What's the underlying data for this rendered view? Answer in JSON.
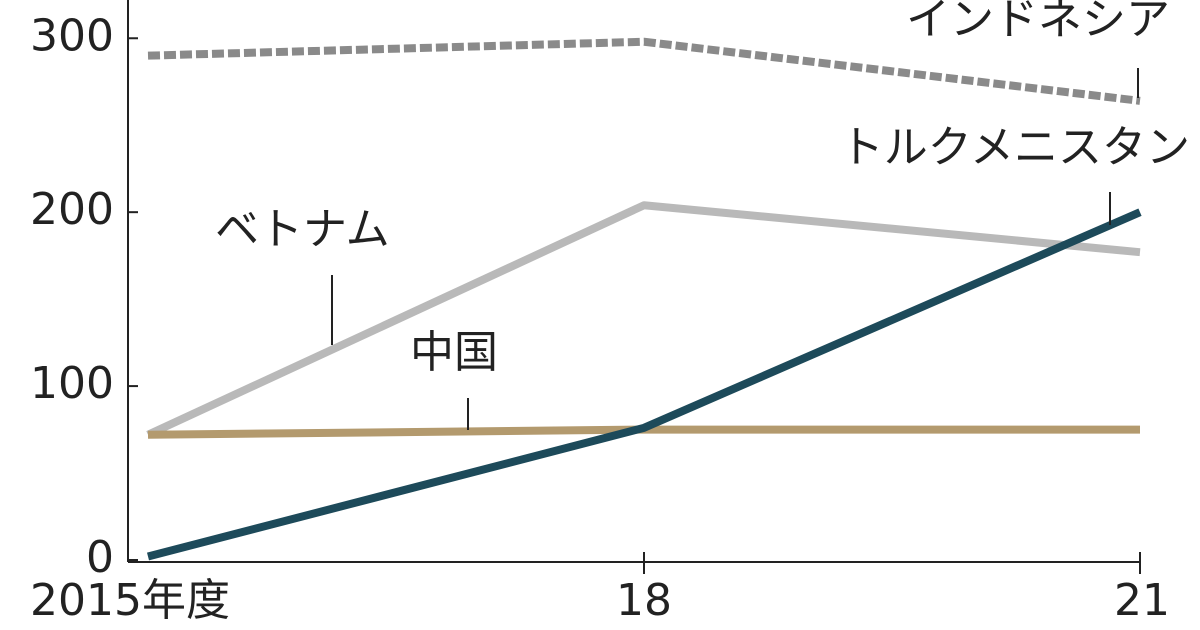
{
  "chart_data": {
    "type": "line",
    "categories": [
      "2015年度",
      "18",
      "21"
    ],
    "ylim": [
      0,
      322
    ],
    "yticks": [
      0,
      100,
      200,
      300
    ],
    "series": [
      {
        "name": "インドネシア",
        "color": "#8a8a8a",
        "dashed": true,
        "values": [
          290,
          298,
          264
        ]
      },
      {
        "name": "ベトナム",
        "color": "#b9b9b9",
        "values": [
          72,
          204,
          177
        ]
      },
      {
        "name": "中国",
        "color": "#b39a6e",
        "values": [
          72,
          75,
          75
        ]
      },
      {
        "name": "トルクメニスタン",
        "color": "#1d4a5a",
        "values": [
          2,
          76,
          200
        ]
      }
    ]
  }
}
